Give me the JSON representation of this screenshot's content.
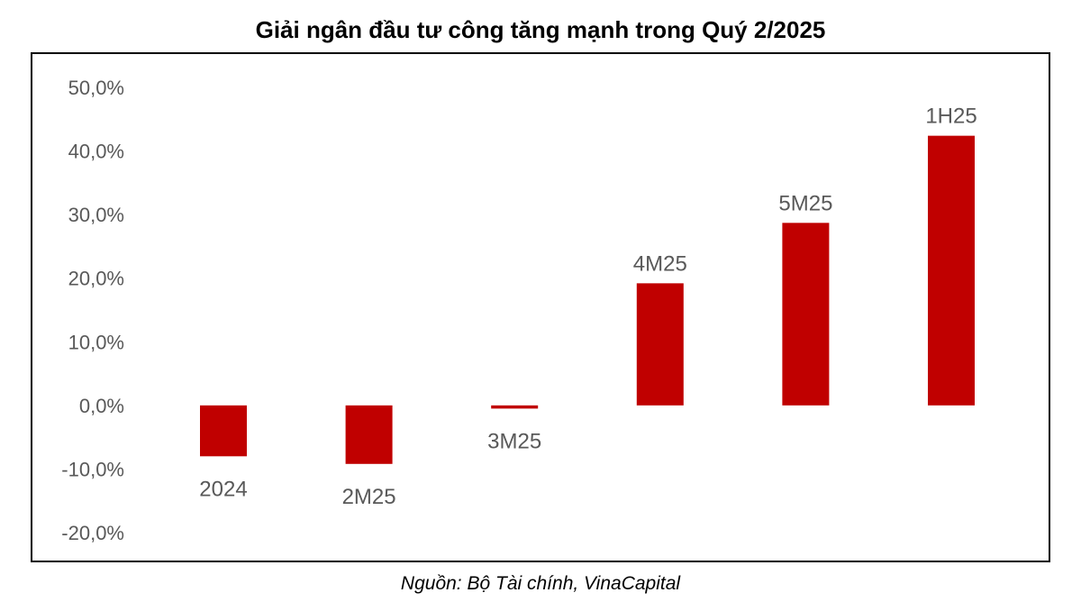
{
  "chart_data": {
    "type": "bar",
    "title": "Giải ngân đầu tư công tăng mạnh trong Quý 2/2025",
    "source": "Nguồn: Bộ Tài chính, VinaCapital",
    "categories": [
      "2024",
      "2M25",
      "3M25",
      "4M25",
      "5M25",
      "1H25"
    ],
    "values": [
      -8.0,
      -9.2,
      -0.5,
      19.2,
      28.7,
      42.4
    ],
    "ylim": [
      -20,
      50
    ],
    "yticks": [
      -20,
      -10,
      0,
      10,
      20,
      30,
      40,
      50
    ],
    "ytick_labels": [
      "-20,0%",
      "-10,0%",
      "0,0%",
      "10,0%",
      "20,0%",
      "30,0%",
      "40,0%",
      "50,0%"
    ],
    "grid": false,
    "legend": "none",
    "xlabel": "",
    "ylabel": "",
    "bar_color": "#c00000",
    "label_color": "#595959"
  }
}
